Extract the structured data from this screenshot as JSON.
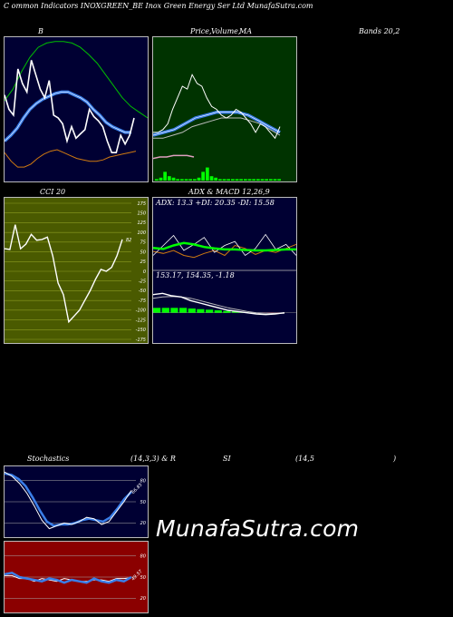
{
  "header": {
    "title": "C                ommon  Indicators INOXGREEN_BE Inox Green  Energy Ser Ltd MunafaSutra.com"
  },
  "labels": {
    "b": "B",
    "price": "Price,",
    "volume": "Volume,",
    "ma": "MA",
    "bands": "Bands 20,2",
    "cci": "CCI 20",
    "adx_macd": "ADX  & MACD 12,26,9",
    "adx_values": "ADX: 13.3  +DI: 20.35 -DI: 15.58",
    "macd_values": "153.17,  154.35,  -1.18",
    "stoch": "Stochastics",
    "stoch_params": "(14,3,3) & R",
    "si": "SI",
    "rsi_params": "(14,5",
    "paren": ")",
    "cci_value": "82",
    "stoch_value": "66.85",
    "rsi_value": "49.57"
  },
  "watermark": "MunafaSutra.com",
  "colors": {
    "panel_navy": "#000033",
    "panel_green": "#003300",
    "panel_olive": "#4a5a00",
    "panel_red": "#8b0000",
    "white": "#ffffff",
    "blue": "#3a7ee8",
    "green": "#00c000",
    "orange": "#d07a10",
    "bright_green": "#00ff00"
  },
  "chart_data": [
    {
      "type": "line",
      "name": "Bollinger Bands",
      "ylim": [
        0,
        100
      ],
      "series": [
        {
          "name": "price",
          "color": "#ffffff",
          "values": [
            60,
            50,
            46,
            78,
            68,
            62,
            84,
            74,
            64,
            58,
            70,
            46,
            44,
            40,
            28,
            38,
            30,
            33,
            36,
            50,
            45,
            42,
            38,
            28,
            20,
            20,
            32,
            26,
            32,
            44
          ]
        },
        {
          "name": "middle",
          "color": "#3a7ee8",
          "values": [
            28,
            32,
            37,
            44,
            50,
            54,
            57,
            59,
            61,
            62,
            62,
            60,
            58,
            55,
            50,
            46,
            41,
            38,
            36,
            34,
            34
          ]
        },
        {
          "name": "upper",
          "color": "#00c000",
          "values": [
            56,
            64,
            76,
            86,
            93,
            96,
            97,
            97,
            96,
            93,
            88,
            82,
            74,
            66,
            58,
            52,
            48,
            44
          ]
        },
        {
          "name": "lower",
          "color": "#d07a10",
          "values": [
            20,
            14,
            10,
            10,
            12,
            16,
            19,
            21,
            22,
            20,
            18,
            16,
            15,
            14,
            14,
            15,
            17,
            18,
            19,
            20,
            21
          ]
        }
      ]
    },
    {
      "type": "line",
      "name": "Price Volume MA",
      "ylim": [
        0,
        100
      ],
      "series": [
        {
          "name": "price",
          "color": "#ffffff",
          "values": [
            34,
            34,
            36,
            40,
            50,
            58,
            66,
            64,
            74,
            68,
            66,
            58,
            52,
            50,
            46,
            44,
            46,
            50,
            48,
            44,
            40,
            34,
            40,
            38,
            34,
            30,
            38
          ]
        },
        {
          "name": "ma",
          "color": "#3a7ee8",
          "values": [
            32,
            34,
            36,
            40,
            44,
            46,
            48,
            48,
            48,
            46,
            42,
            38,
            34
          ]
        },
        {
          "name": "ma2",
          "color": "#bbbbbb",
          "values": [
            30,
            30,
            32,
            34,
            38,
            40,
            42,
            44,
            44,
            44,
            42,
            40,
            36,
            32
          ]
        },
        {
          "name": "ma3",
          "color": "#e0a0c0",
          "values": [
            16,
            17,
            17,
            18,
            18,
            18,
            17
          ]
        }
      ],
      "volume": [
        1,
        2,
        6,
        3,
        2,
        1,
        1,
        1,
        1,
        1,
        2,
        6,
        9,
        3,
        2,
        1,
        1,
        1,
        1,
        1,
        1,
        1,
        1,
        1,
        1,
        1,
        1,
        1,
        1,
        1
      ]
    },
    {
      "type": "line",
      "name": "CCI 20",
      "ylim": [
        -175,
        175
      ],
      "ticks": [
        175,
        150,
        125,
        100,
        75,
        50,
        25,
        0,
        -25,
        -50,
        -75,
        -100,
        -125,
        -150,
        -175
      ],
      "series": [
        {
          "name": "cci",
          "color": "#ffffff",
          "values": [
            58,
            56,
            120,
            58,
            70,
            95,
            80,
            82,
            88,
            40,
            -30,
            -60,
            -130,
            -115,
            -100,
            -75,
            -50,
            -20,
            5,
            0,
            10,
            40,
            82
          ]
        }
      ]
    },
    {
      "type": "line",
      "name": "ADX",
      "ylim": [
        0,
        100
      ],
      "series": [
        {
          "name": "adx",
          "color": "#00ff00",
          "values": [
            45,
            43,
            50,
            55,
            52,
            47,
            44,
            42,
            42,
            41,
            40,
            40,
            41,
            42,
            42
          ]
        },
        {
          "name": "plus_di",
          "color": "#ffffff",
          "values": [
            30,
            50,
            70,
            40,
            52,
            66,
            36,
            50,
            58,
            30,
            44,
            72,
            42,
            52,
            30
          ]
        },
        {
          "name": "minus_di",
          "color": "#d07a10",
          "values": [
            38,
            34,
            40,
            30,
            26,
            34,
            40,
            30,
            50,
            44,
            32,
            40,
            36,
            44,
            52
          ]
        }
      ]
    },
    {
      "type": "line",
      "name": "MACD",
      "ylim": [
        -20,
        40
      ],
      "series": [
        {
          "name": "macd",
          "color": "#ffffff",
          "values": [
            30,
            32,
            28,
            26,
            20,
            16,
            12,
            8,
            4,
            2,
            0,
            -2,
            -3,
            -2,
            0
          ]
        },
        {
          "name": "signal",
          "color": "#bbbbbb",
          "values": [
            24,
            26,
            27,
            26,
            24,
            20,
            16,
            12,
            8,
            5,
            2,
            0,
            -1,
            -1,
            -1
          ]
        },
        {
          "name": "histogram",
          "color": "#00c000",
          "values": [
            8,
            8,
            8,
            8,
            7,
            6,
            5,
            4,
            3,
            2,
            1,
            0,
            -1,
            -1,
            -1
          ]
        }
      ]
    },
    {
      "type": "line",
      "name": "Stochastics",
      "ylim": [
        0,
        100
      ],
      "ticks": [
        80,
        50,
        20
      ],
      "series": [
        {
          "name": "k",
          "color": "#ffffff",
          "values": [
            92,
            86,
            76,
            62,
            44,
            24,
            12,
            16,
            20,
            18,
            22,
            28,
            26,
            18,
            22,
            36,
            50,
            66
          ]
        },
        {
          "name": "d",
          "color": "#3a7ee8",
          "values": [
            90,
            88,
            82,
            72,
            56,
            38,
            22,
            16,
            18,
            18,
            20,
            24,
            26,
            24,
            22,
            28,
            40,
            54,
            64
          ]
        }
      ]
    },
    {
      "type": "line",
      "name": "RSI",
      "ylim": [
        0,
        100
      ],
      "ticks": [
        80,
        50,
        20
      ],
      "series": [
        {
          "name": "rsi",
          "color": "#3a7ee8",
          "values": [
            54,
            56,
            50,
            48,
            46,
            44,
            48,
            46,
            42,
            46,
            44,
            42,
            48,
            44,
            42,
            46,
            44,
            50
          ]
        },
        {
          "name": "rsi2",
          "color": "#ffffff",
          "values": [
            52,
            52,
            48,
            48,
            44,
            48,
            46,
            44,
            48,
            46,
            44,
            44,
            46,
            46,
            44,
            48,
            48,
            49
          ]
        }
      ]
    }
  ]
}
